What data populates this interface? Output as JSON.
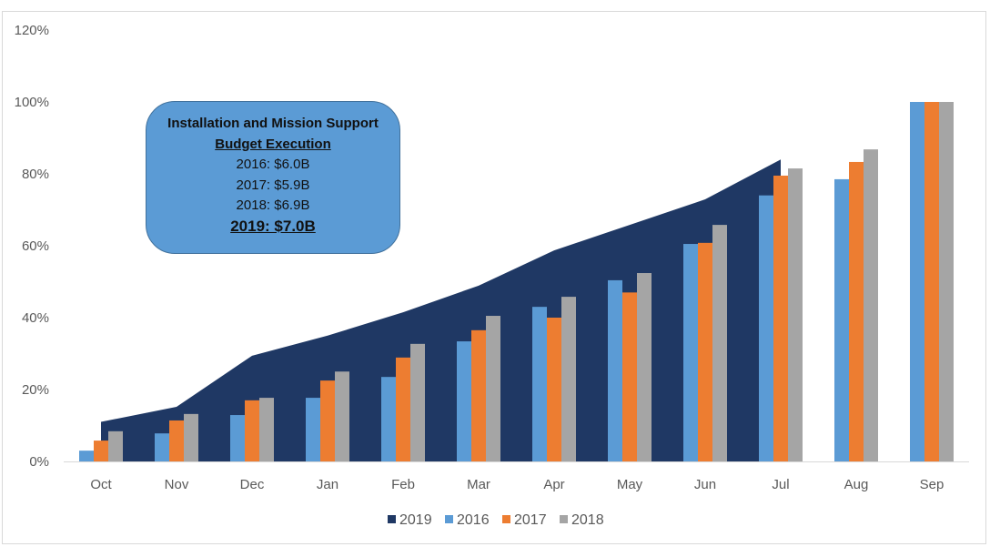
{
  "chart_data": {
    "type": "bar",
    "title": "",
    "xlabel": "",
    "ylabel": "",
    "ylim": [
      0,
      120
    ],
    "y_ticks": [
      "0%",
      "20%",
      "40%",
      "60%",
      "80%",
      "100%",
      "120%"
    ],
    "grid": false,
    "legend_placement": "bottom",
    "categories": [
      "Oct",
      "Nov",
      "Dec",
      "Jan",
      "Feb",
      "Mar",
      "Apr",
      "May",
      "Jun",
      "Jul",
      "Aug",
      "Sep"
    ],
    "area_series": {
      "name": "2019",
      "color": "#1f3864",
      "type": "area",
      "values": [
        11,
        15.2,
        29.4,
        35,
        41.5,
        48.9,
        58.7,
        65.8,
        72.9,
        84,
        null,
        null
      ]
    },
    "series": [
      {
        "name": "2016",
        "color": "#5b9bd5",
        "values": [
          3,
          7.8,
          12.9,
          17.7,
          23.5,
          33.4,
          43,
          50.4,
          60.5,
          74,
          78.5,
          100
        ]
      },
      {
        "name": "2017",
        "color": "#ed7d31",
        "values": [
          5.8,
          11.4,
          17,
          22.5,
          28.9,
          36.5,
          40,
          47,
          60.8,
          79.5,
          83.3,
          100
        ]
      },
      {
        "name": "2018",
        "color": "#a5a5a5",
        "values": [
          8.4,
          13.2,
          17.7,
          25,
          32.7,
          40.5,
          45.8,
          52.4,
          65.8,
          81.5,
          86.8,
          100
        ]
      }
    ],
    "annotation": {
      "line1": "Installation and Mission Support",
      "line2": "Budget Execution",
      "line3": "2016: $6.0B",
      "line4": "2017: $5.9B",
      "line5": "2018: $6.9B",
      "line6": "2019: $7.0B"
    }
  }
}
